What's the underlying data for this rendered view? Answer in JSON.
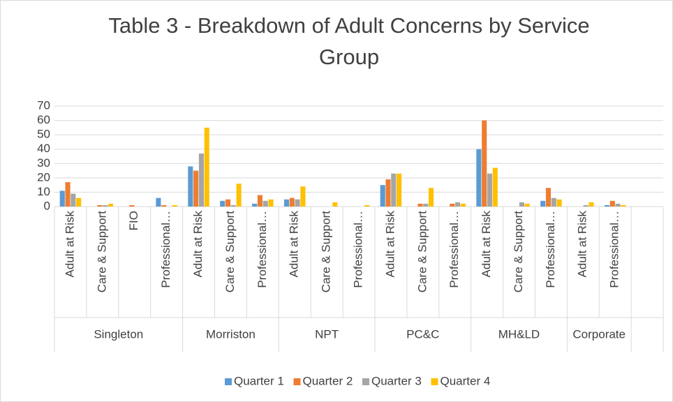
{
  "chart_data": {
    "type": "bar",
    "title": "Table 3 - Breakdown of Adult Concerns by Service Group",
    "groups": [
      {
        "name": "Singleton",
        "categories": [
          "Adult at Risk",
          "Care & Support",
          "FIO",
          "Professional…"
        ]
      },
      {
        "name": "Morriston",
        "categories": [
          "Adult at Risk",
          "Care & Support",
          "Professional…"
        ]
      },
      {
        "name": "NPT",
        "categories": [
          "Adult at Risk",
          "Care & Support",
          "Professional…"
        ]
      },
      {
        "name": "PC&C",
        "categories": [
          "Adult at Risk",
          "Care & Support",
          "Professional…"
        ]
      },
      {
        "name": "MH&LD",
        "categories": [
          "Adult at Risk",
          "Care & Support",
          "Professional…"
        ]
      },
      {
        "name": "Corporate",
        "categories": [
          "Adult at Risk",
          "Professional…"
        ]
      },
      {
        "name": null,
        "categories": [
          null
        ]
      }
    ],
    "series": [
      {
        "name": "Quarter 1",
        "color": "#5b9bd5",
        "values": [
          11,
          0,
          0,
          6,
          28,
          4,
          2,
          5,
          0,
          0,
          15,
          0,
          0,
          40,
          0,
          4,
          0,
          1,
          null
        ]
      },
      {
        "name": "Quarter 2",
        "color": "#ed7d31",
        "values": [
          17,
          1,
          1,
          1,
          25,
          5,
          8,
          6,
          0,
          0,
          19,
          2,
          2,
          60,
          0,
          13,
          0,
          4,
          null
        ]
      },
      {
        "name": "Quarter 3",
        "color": "#a5a5a5",
        "values": [
          9,
          1,
          0,
          0,
          37,
          1,
          4,
          5,
          0,
          0,
          23,
          2,
          3,
          23,
          3,
          6,
          1,
          2,
          null
        ]
      },
      {
        "name": "Quarter 4",
        "color": "#ffc000",
        "values": [
          6,
          2,
          0,
          1,
          55,
          16,
          5,
          14,
          3,
          1,
          23,
          13,
          2,
          27,
          2,
          5,
          3,
          1,
          null
        ]
      }
    ],
    "ylim": [
      0,
      70
    ],
    "yticks": [
      0,
      10,
      20,
      30,
      40,
      50,
      60,
      70
    ],
    "grid": true,
    "legend": "bottom"
  }
}
